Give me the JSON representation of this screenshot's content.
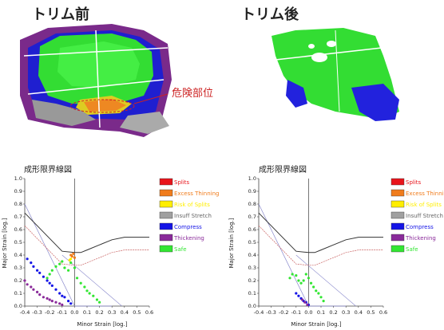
{
  "panels": {
    "before": {
      "title": "トリム前",
      "callout": "危険部位"
    },
    "after": {
      "title": "トリム後"
    }
  },
  "colors": {
    "splits": "#e8141b",
    "excess_thinning": "#f07c1c",
    "risk_of_splits": "#ffee00",
    "insuff_stretch": "#a0a0a0",
    "compress": "#1414e6",
    "thickening": "#8a2a9a",
    "safe": "#32e632",
    "flc": "#333333",
    "diagonal": "#8888cc",
    "dotted_curve": "#c86060"
  },
  "chart_data": [
    {
      "type": "scatter",
      "title": "成形限界線図",
      "xlabel": "Minor Strain [log.]",
      "ylabel": "Major Strain [log.]",
      "xlim": [
        -0.4,
        0.6
      ],
      "ylim": [
        0.0,
        1.0
      ],
      "xticks": [
        "-0.4",
        "-0.3",
        "-0.2",
        "-0.1",
        "0.0",
        "0.1",
        "0.2",
        "0.3",
        "0.4",
        "0.5",
        "0.6"
      ],
      "yticks": [
        "0.0",
        "0.1",
        "0.2",
        "0.3",
        "0.4",
        "0.5",
        "0.6",
        "0.7",
        "0.8",
        "0.9",
        "1.0"
      ],
      "grid": false,
      "legend_position": "right",
      "legend": [
        {
          "label": "Splits",
          "color": "#e8141b"
        },
        {
          "label": "Excess Thinning",
          "color": "#f07c1c"
        },
        {
          "label": "Risk of Splits",
          "color": "#ffee00"
        },
        {
          "label": "Insuff Stretch",
          "color": "#a0a0a0"
        },
        {
          "label": "Compress",
          "color": "#1414e6"
        },
        {
          "label": "Thickening",
          "color": "#8a2a9a"
        },
        {
          "label": "Safe",
          "color": "#32e632"
        }
      ],
      "flc": {
        "x": [
          -0.4,
          -0.3,
          -0.2,
          -0.1,
          0.0,
          0.05,
          0.1,
          0.2,
          0.3,
          0.4,
          0.6
        ],
        "y": [
          0.73,
          0.63,
          0.53,
          0.43,
          0.42,
          0.42,
          0.44,
          0.48,
          0.52,
          0.54,
          0.54
        ]
      },
      "series": [
        {
          "category": "Thickening",
          "x": [
            -0.4,
            -0.38,
            -0.35,
            -0.33,
            -0.3,
            -0.28,
            -0.25,
            -0.22,
            -0.2,
            -0.18,
            -0.15,
            -0.12,
            -0.1
          ],
          "y": [
            0.2,
            0.17,
            0.15,
            0.13,
            0.11,
            0.09,
            0.07,
            0.06,
            0.05,
            0.04,
            0.03,
            0.02,
            0.01
          ]
        },
        {
          "category": "Compress",
          "x": [
            -0.38,
            -0.35,
            -0.33,
            -0.3,
            -0.28,
            -0.25,
            -0.22,
            -0.2,
            -0.18,
            -0.15,
            -0.12,
            -0.1,
            -0.08,
            -0.05,
            -0.03
          ],
          "y": [
            0.37,
            0.34,
            0.31,
            0.28,
            0.26,
            0.23,
            0.2,
            0.18,
            0.16,
            0.13,
            0.1,
            0.08,
            0.07,
            0.04,
            0.02
          ]
        },
        {
          "category": "Safe",
          "x": [
            -0.22,
            -0.2,
            -0.18,
            -0.15,
            -0.12,
            -0.1,
            -0.08,
            -0.05,
            -0.03,
            0.0,
            0.02,
            0.05,
            0.08,
            0.1,
            0.12,
            0.15,
            0.18,
            0.2
          ],
          "y": [
            0.22,
            0.25,
            0.28,
            0.31,
            0.33,
            0.35,
            0.3,
            0.28,
            0.34,
            0.3,
            0.22,
            0.18,
            0.15,
            0.12,
            0.1,
            0.08,
            0.05,
            0.03
          ]
        },
        {
          "category": "Excess Thinning",
          "x": [
            -0.03,
            -0.02,
            -0.01,
            0.0
          ],
          "y": [
            0.4,
            0.39,
            0.41,
            0.38
          ]
        },
        {
          "category": "Risk of Splits",
          "x": [
            -0.04,
            -0.03
          ],
          "y": [
            0.36,
            0.37
          ]
        }
      ]
    },
    {
      "type": "scatter",
      "title": "成形限界線図",
      "xlabel": "Minor Strain [log.]",
      "ylabel": "Major Strain [log.]",
      "xlim": [
        -0.4,
        0.6
      ],
      "ylim": [
        0.0,
        1.0
      ],
      "xticks": [
        "-0.4",
        "-0.3",
        "-0.2",
        "-0.1",
        "0.0",
        "0.1",
        "0.2",
        "0.3",
        "0.4",
        "0.5",
        "0.6"
      ],
      "yticks": [
        "0.0",
        "0.1",
        "0.2",
        "0.3",
        "0.4",
        "0.5",
        "0.6",
        "0.7",
        "0.8",
        "0.9",
        "1.0"
      ],
      "grid": false,
      "legend_position": "right",
      "legend": [
        {
          "label": "Splits",
          "color": "#e8141b"
        },
        {
          "label": "Excess Thinni",
          "color": "#f07c1c"
        },
        {
          "label": "Risk of Splits",
          "color": "#ffee00"
        },
        {
          "label": "Insuff Stretch",
          "color": "#a0a0a0"
        },
        {
          "label": "Compress",
          "color": "#1414e6"
        },
        {
          "label": "Thickening",
          "color": "#8a2a9a"
        },
        {
          "label": "Safe",
          "color": "#32e632"
        }
      ],
      "flc": {
        "x": [
          -0.4,
          -0.3,
          -0.2,
          -0.1,
          0.0,
          0.05,
          0.1,
          0.2,
          0.3,
          0.4,
          0.6
        ],
        "y": [
          0.73,
          0.63,
          0.53,
          0.43,
          0.42,
          0.42,
          0.44,
          0.48,
          0.52,
          0.54,
          0.54
        ]
      },
      "series": [
        {
          "category": "Compress",
          "x": [
            -0.1,
            -0.08,
            -0.06,
            -0.04,
            -0.02,
            0.0
          ],
          "y": [
            0.1,
            0.08,
            0.06,
            0.04,
            0.03,
            0.01
          ]
        },
        {
          "category": "Thickening",
          "x": [
            -0.05,
            -0.03,
            -0.01
          ],
          "y": [
            0.05,
            0.03,
            0.01
          ]
        },
        {
          "category": "Safe",
          "x": [
            -0.15,
            -0.13,
            -0.1,
            -0.08,
            -0.06,
            -0.04,
            -0.02,
            0.0,
            0.02,
            0.04,
            0.06,
            0.08,
            0.1,
            0.12
          ],
          "y": [
            0.22,
            0.25,
            0.24,
            0.2,
            0.18,
            0.2,
            0.25,
            0.22,
            0.18,
            0.15,
            0.12,
            0.1,
            0.07,
            0.04
          ]
        }
      ]
    }
  ]
}
